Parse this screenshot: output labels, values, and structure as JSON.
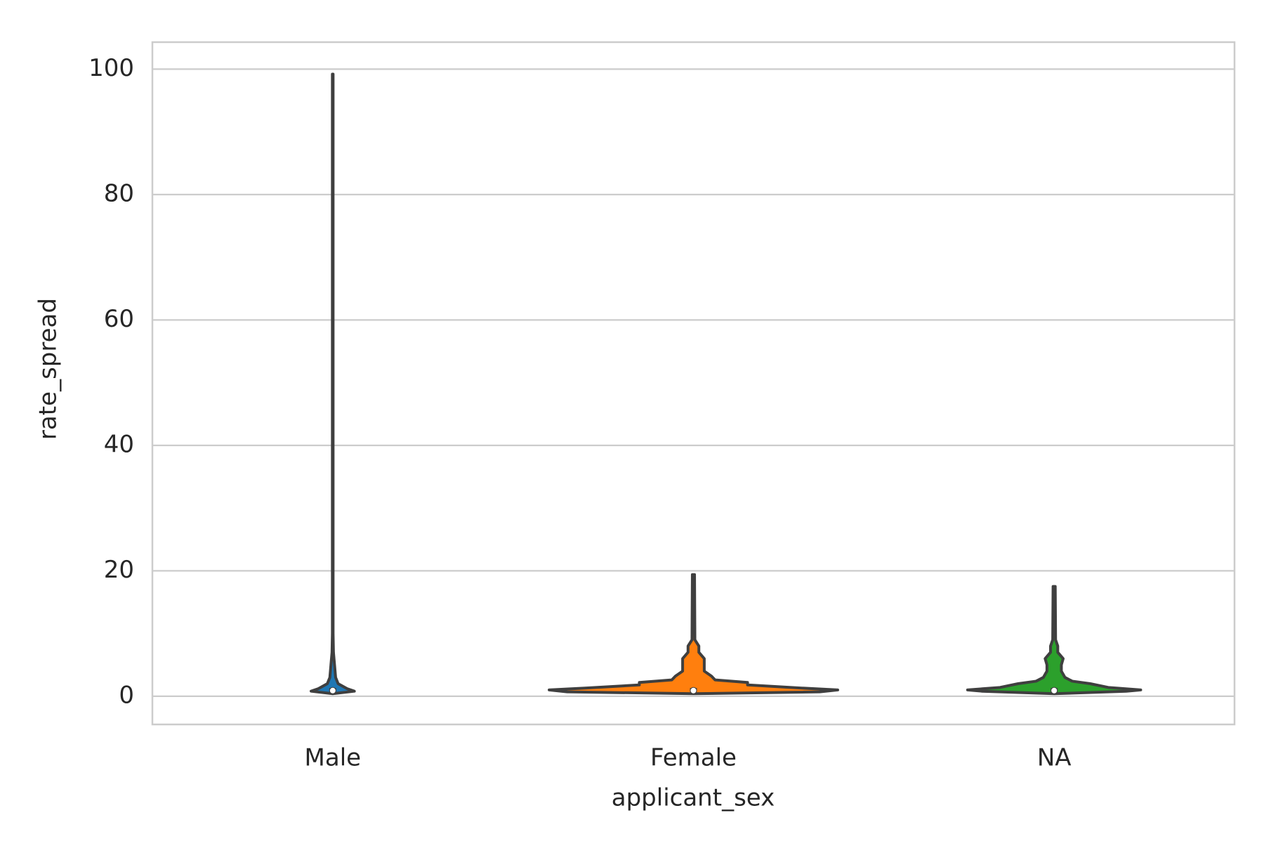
{
  "chart_data": {
    "type": "violin",
    "x_label": "applicant_sex",
    "y_label": "rate_spread",
    "categories": [
      "Male",
      "Female",
      "NA"
    ],
    "colors": [
      "#1f77b4",
      "#ff7f0e",
      "#2ca02c"
    ],
    "violins": [
      {
        "y": [
          0.4,
          0.8,
          1.2,
          2,
          3,
          5,
          7,
          10,
          99.2
        ],
        "widths": [
          0,
          0.06,
          0.04,
          0.015,
          0.008,
          0.005,
          0.002,
          0.001,
          0.001
        ],
        "q1": 0.7,
        "median": 0.9,
        "q3": 1.3
      },
      {
        "y": [
          0.4,
          0.7,
          1.0,
          1.3,
          1.8,
          2.2,
          2.6,
          3.2,
          4,
          5,
          6,
          7,
          8,
          9,
          19.4
        ],
        "widths": [
          0,
          0.35,
          0.4,
          0.3,
          0.15,
          0.15,
          0.06,
          0.05,
          0.03,
          0.03,
          0.03,
          0.015,
          0.015,
          0.004,
          0.003
        ],
        "q1": 0.7,
        "median": 0.9,
        "q3": 1.3
      },
      {
        "y": [
          0.4,
          0.8,
          1.0,
          1.4,
          2,
          2.4,
          3,
          4,
          5,
          6,
          7,
          8,
          9,
          17.5
        ],
        "widths": [
          0,
          0.2,
          0.24,
          0.15,
          0.1,
          0.05,
          0.03,
          0.02,
          0.02,
          0.025,
          0.01,
          0.01,
          0.004,
          0.003
        ],
        "q1": 0.7,
        "median": 0.9,
        "q3": 1.3
      }
    ],
    "ylim": [
      -4.5,
      104.3
    ],
    "yticks": [
      0,
      20,
      40,
      60,
      80,
      100
    ],
    "grid": true
  }
}
